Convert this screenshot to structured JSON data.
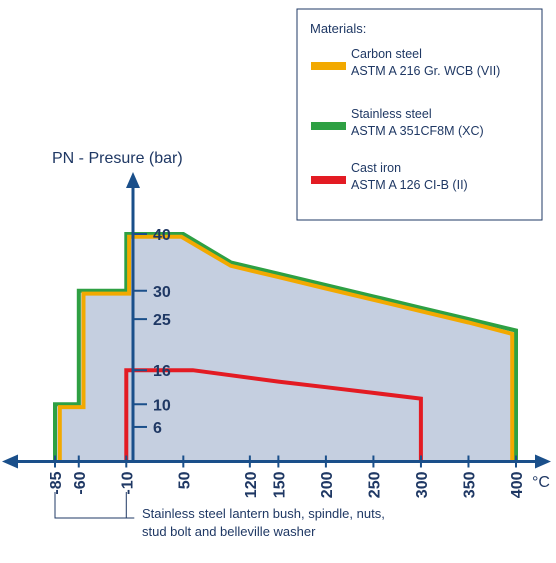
{
  "chart_data": {
    "type": "area",
    "ylabel": "PN - Presure (bar)",
    "xunit": "°C",
    "x_ticks": [
      -85,
      -60,
      -10,
      50,
      120,
      150,
      200,
      250,
      300,
      350,
      400
    ],
    "y_ticks": [
      6,
      10,
      16,
      25,
      30,
      40
    ],
    "xlim": [
      -85,
      400
    ],
    "ylim": [
      0,
      40
    ],
    "series": [
      {
        "name": "Stainless steel",
        "detail": "ASTM A 351CF8M (XC)",
        "color": "#2ea043",
        "x": [
          -85,
          -85,
          -60,
          -60,
          -10,
          -10,
          50,
          100,
          150,
          200,
          250,
          300,
          350,
          400,
          400
        ],
        "y": [
          0,
          10,
          10,
          30,
          30,
          40,
          40,
          35,
          33,
          31,
          29,
          27,
          25,
          23,
          0
        ]
      },
      {
        "name": "Carbon steel",
        "detail": "ASTM A 216 Gr. WCB (VII)",
        "color": "#f2a900",
        "x": [
          -80,
          -80,
          -55,
          -55,
          -7,
          -7,
          48,
          100,
          150,
          200,
          250,
          300,
          350,
          396,
          396
        ],
        "y": [
          0,
          9.5,
          9.5,
          29.5,
          29.5,
          39.5,
          39.5,
          34.4,
          32.4,
          30.4,
          28.4,
          26.4,
          24.4,
          22.4,
          0
        ]
      },
      {
        "name": "Cast iron",
        "detail": "ASTM A 126 CI-B (II)",
        "color": "#e31b23",
        "x": [
          -10,
          -10,
          60,
          150,
          200,
          250,
          300,
          300
        ],
        "y": [
          0,
          16,
          16,
          14,
          13,
          12,
          11,
          0
        ]
      }
    ],
    "legend_title": "Materials:",
    "legend_position": "top-right",
    "note": [
      "Stainless steel lantern bush, spindle, nuts,",
      "stud bolt and belleville washer"
    ]
  }
}
